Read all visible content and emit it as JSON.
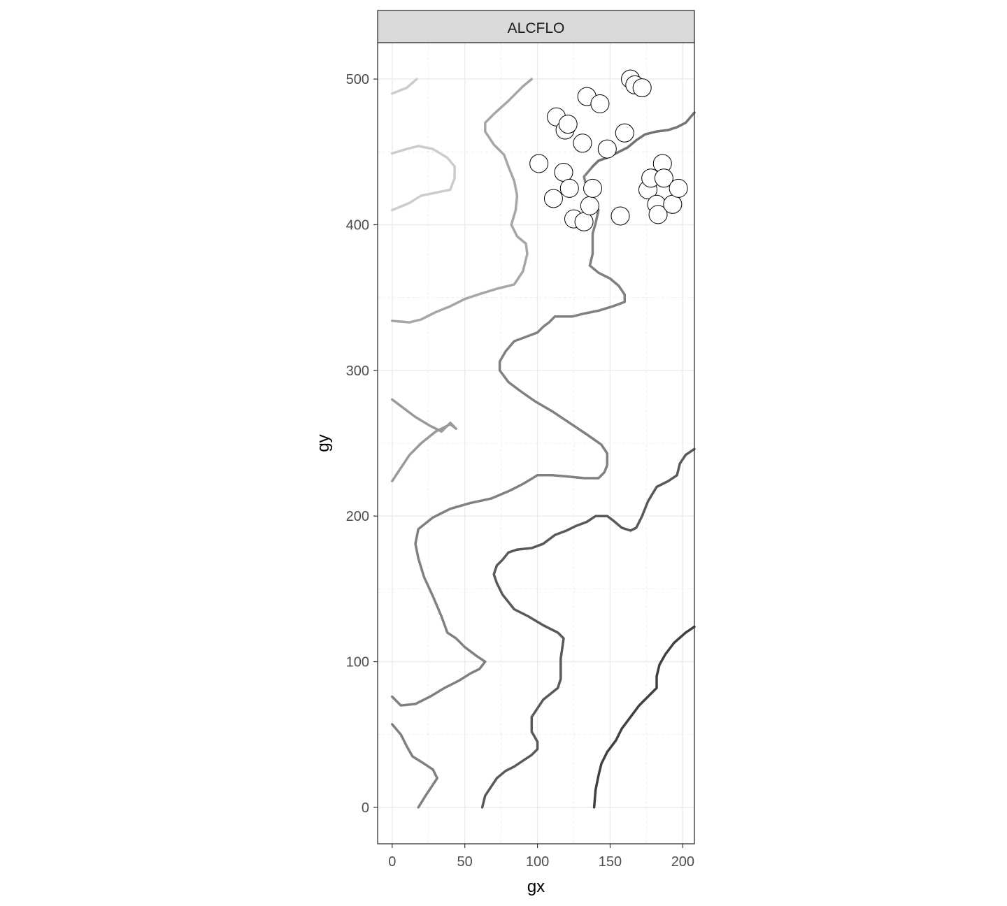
{
  "chart_data": {
    "type": "scatter",
    "facet_label": "ALCFLO",
    "xlabel": "gx",
    "ylabel": "gy",
    "xlim": [
      -10,
      208
    ],
    "ylim": [
      -25,
      525
    ],
    "x_ticks": [
      0,
      50,
      100,
      150,
      200
    ],
    "y_ticks": [
      0,
      100,
      200,
      300,
      400,
      500
    ],
    "grid": true,
    "points": [
      {
        "x": 101,
        "y": 442
      },
      {
        "x": 113,
        "y": 474
      },
      {
        "x": 119,
        "y": 465
      },
      {
        "x": 121,
        "y": 469
      },
      {
        "x": 118,
        "y": 436
      },
      {
        "x": 111,
        "y": 418
      },
      {
        "x": 122,
        "y": 425
      },
      {
        "x": 125,
        "y": 404
      },
      {
        "x": 131,
        "y": 456
      },
      {
        "x": 134,
        "y": 488
      },
      {
        "x": 143,
        "y": 483
      },
      {
        "x": 132,
        "y": 402
      },
      {
        "x": 136,
        "y": 413
      },
      {
        "x": 138,
        "y": 425
      },
      {
        "x": 148,
        "y": 452
      },
      {
        "x": 157,
        "y": 406
      },
      {
        "x": 160,
        "y": 463
      },
      {
        "x": 164,
        "y": 500
      },
      {
        "x": 167,
        "y": 496
      },
      {
        "x": 172,
        "y": 494
      },
      {
        "x": 176,
        "y": 424
      },
      {
        "x": 178,
        "y": 432
      },
      {
        "x": 182,
        "y": 414
      },
      {
        "x": 183,
        "y": 407
      },
      {
        "x": 186,
        "y": 442
      },
      {
        "x": 187,
        "y": 432
      },
      {
        "x": 193,
        "y": 414
      },
      {
        "x": 197,
        "y": 425
      }
    ],
    "contours": [
      {
        "color": "#cccccc",
        "points": [
          [
            0,
            490
          ],
          [
            10,
            494
          ],
          [
            17,
            500
          ]
        ]
      },
      {
        "color": "#cccccc",
        "points": [
          [
            0,
            449
          ],
          [
            10,
            452
          ],
          [
            18,
            454
          ],
          [
            28,
            452
          ],
          [
            38,
            446
          ],
          [
            43,
            440
          ],
          [
            43,
            432
          ],
          [
            40,
            424
          ],
          [
            30,
            422
          ],
          [
            20,
            420
          ],
          [
            12,
            415
          ],
          [
            0,
            410
          ]
        ]
      },
      {
        "color": "#a6a6a6",
        "points": [
          [
            96,
            500
          ],
          [
            90,
            495
          ],
          [
            80,
            485
          ],
          [
            70,
            476
          ],
          [
            64,
            470
          ],
          [
            64,
            464
          ],
          [
            70,
            455
          ],
          [
            77,
            448
          ],
          [
            80,
            440
          ],
          [
            84,
            430
          ],
          [
            86,
            420
          ],
          [
            85,
            410
          ],
          [
            82,
            400
          ],
          [
            86,
            392
          ],
          [
            92,
            387
          ],
          [
            93,
            380
          ],
          [
            90,
            368
          ],
          [
            84,
            359
          ],
          [
            72,
            356
          ],
          [
            62,
            353
          ],
          [
            50,
            349
          ],
          [
            40,
            344
          ],
          [
            30,
            340
          ],
          [
            20,
            335
          ],
          [
            12,
            333
          ],
          [
            0,
            334
          ]
        ]
      },
      {
        "color": "#999999",
        "points": [
          [
            0,
            280
          ],
          [
            8,
            274
          ],
          [
            16,
            268
          ],
          [
            26,
            262
          ],
          [
            34,
            258
          ],
          [
            40,
            264
          ],
          [
            44,
            260
          ],
          [
            40,
            263
          ],
          [
            30,
            258
          ],
          [
            20,
            250
          ],
          [
            12,
            242
          ],
          [
            6,
            233
          ],
          [
            0,
            224
          ]
        ]
      },
      {
        "color": "#808080",
        "points": [
          [
            138,
            440
          ],
          [
            132,
            433
          ],
          [
            134,
            425
          ],
          [
            136,
            420
          ],
          [
            138,
            414
          ],
          [
            142,
            410
          ],
          [
            140,
            401
          ],
          [
            138,
            394
          ],
          [
            138,
            387
          ],
          [
            138,
            380
          ],
          [
            136,
            372
          ],
          [
            142,
            367
          ],
          [
            150,
            363
          ],
          [
            156,
            358
          ],
          [
            160,
            352
          ],
          [
            160,
            347
          ],
          [
            152,
            344
          ],
          [
            142,
            341
          ],
          [
            132,
            339
          ],
          [
            124,
            337
          ],
          [
            112,
            337
          ],
          [
            108,
            333
          ],
          [
            104,
            330
          ],
          [
            100,
            326
          ],
          [
            92,
            323
          ],
          [
            84,
            320
          ],
          [
            78,
            313
          ],
          [
            74,
            306
          ],
          [
            74,
            300
          ],
          [
            80,
            292
          ],
          [
            88,
            286
          ],
          [
            98,
            279
          ],
          [
            110,
            272
          ],
          [
            122,
            264
          ],
          [
            134,
            256
          ],
          [
            144,
            249
          ],
          [
            148,
            243
          ],
          [
            148,
            235
          ],
          [
            146,
            230
          ],
          [
            142,
            226
          ],
          [
            132,
            226
          ],
          [
            122,
            227
          ],
          [
            110,
            228
          ],
          [
            100,
            228
          ],
          [
            90,
            222
          ],
          [
            80,
            217
          ],
          [
            68,
            212
          ],
          [
            54,
            209
          ],
          [
            40,
            205
          ],
          [
            28,
            199
          ],
          [
            18,
            191
          ],
          [
            16,
            181
          ],
          [
            18,
            171
          ],
          [
            22,
            158
          ],
          [
            28,
            145
          ],
          [
            34,
            131
          ],
          [
            38,
            120
          ],
          [
            44,
            116
          ],
          [
            50,
            110
          ],
          [
            58,
            104
          ],
          [
            64,
            100
          ],
          [
            60,
            95
          ],
          [
            54,
            92
          ],
          [
            46,
            87
          ],
          [
            36,
            82
          ],
          [
            26,
            76
          ],
          [
            16,
            71
          ],
          [
            6,
            70
          ],
          [
            0,
            76
          ]
        ]
      },
      {
        "color": "#808080",
        "points": [
          [
            0,
            57
          ],
          [
            6,
            50
          ],
          [
            10,
            42
          ],
          [
            14,
            35
          ],
          [
            22,
            30
          ],
          [
            28,
            26
          ],
          [
            31,
            20
          ],
          [
            27,
            14
          ],
          [
            23,
            8
          ],
          [
            18,
            0
          ]
        ]
      },
      {
        "color": "#737373",
        "points": [
          [
            138,
            440
          ],
          [
            142,
            444
          ],
          [
            148,
            446
          ],
          [
            156,
            450
          ],
          [
            162,
            453
          ],
          [
            168,
            458
          ],
          [
            174,
            462
          ],
          [
            182,
            464
          ],
          [
            190,
            465
          ],
          [
            196,
            467
          ],
          [
            202,
            470
          ],
          [
            208,
            477
          ]
        ]
      },
      {
        "color": "#595959",
        "points": [
          [
            208,
            246
          ],
          [
            202,
            242
          ],
          [
            198,
            236
          ],
          [
            196,
            228
          ],
          [
            190,
            224
          ],
          [
            182,
            220
          ],
          [
            176,
            210
          ],
          [
            172,
            200
          ],
          [
            168,
            192
          ],
          [
            164,
            190
          ],
          [
            158,
            192
          ],
          [
            152,
            197
          ],
          [
            148,
            200
          ],
          [
            140,
            200
          ],
          [
            134,
            196
          ],
          [
            126,
            193
          ],
          [
            120,
            190
          ],
          [
            112,
            187
          ],
          [
            104,
            181
          ],
          [
            96,
            178
          ],
          [
            86,
            177
          ],
          [
            80,
            175
          ],
          [
            76,
            170
          ],
          [
            72,
            166
          ],
          [
            70,
            160
          ],
          [
            72,
            154
          ],
          [
            76,
            146
          ],
          [
            84,
            136
          ],
          [
            94,
            131
          ],
          [
            104,
            125
          ],
          [
            114,
            120
          ],
          [
            118,
            116
          ],
          [
            116,
            102
          ],
          [
            116,
            88
          ],
          [
            114,
            82
          ],
          [
            104,
            74
          ],
          [
            96,
            62
          ],
          [
            96,
            52
          ],
          [
            100,
            45
          ],
          [
            100,
            40
          ],
          [
            96,
            36
          ],
          [
            90,
            32
          ],
          [
            84,
            28
          ],
          [
            78,
            25
          ],
          [
            72,
            20
          ],
          [
            68,
            14
          ],
          [
            64,
            8
          ],
          [
            62,
            0
          ]
        ]
      },
      {
        "color": "#404040",
        "points": [
          [
            208,
            124
          ],
          [
            202,
            120
          ],
          [
            194,
            113
          ],
          [
            188,
            105
          ],
          [
            184,
            98
          ],
          [
            182,
            90
          ],
          [
            182,
            82
          ],
          [
            176,
            76
          ],
          [
            170,
            70
          ],
          [
            164,
            62
          ],
          [
            158,
            54
          ],
          [
            154,
            46
          ],
          [
            148,
            38
          ],
          [
            144,
            30
          ],
          [
            142,
            22
          ],
          [
            140,
            12
          ],
          [
            139,
            0
          ]
        ]
      }
    ]
  }
}
